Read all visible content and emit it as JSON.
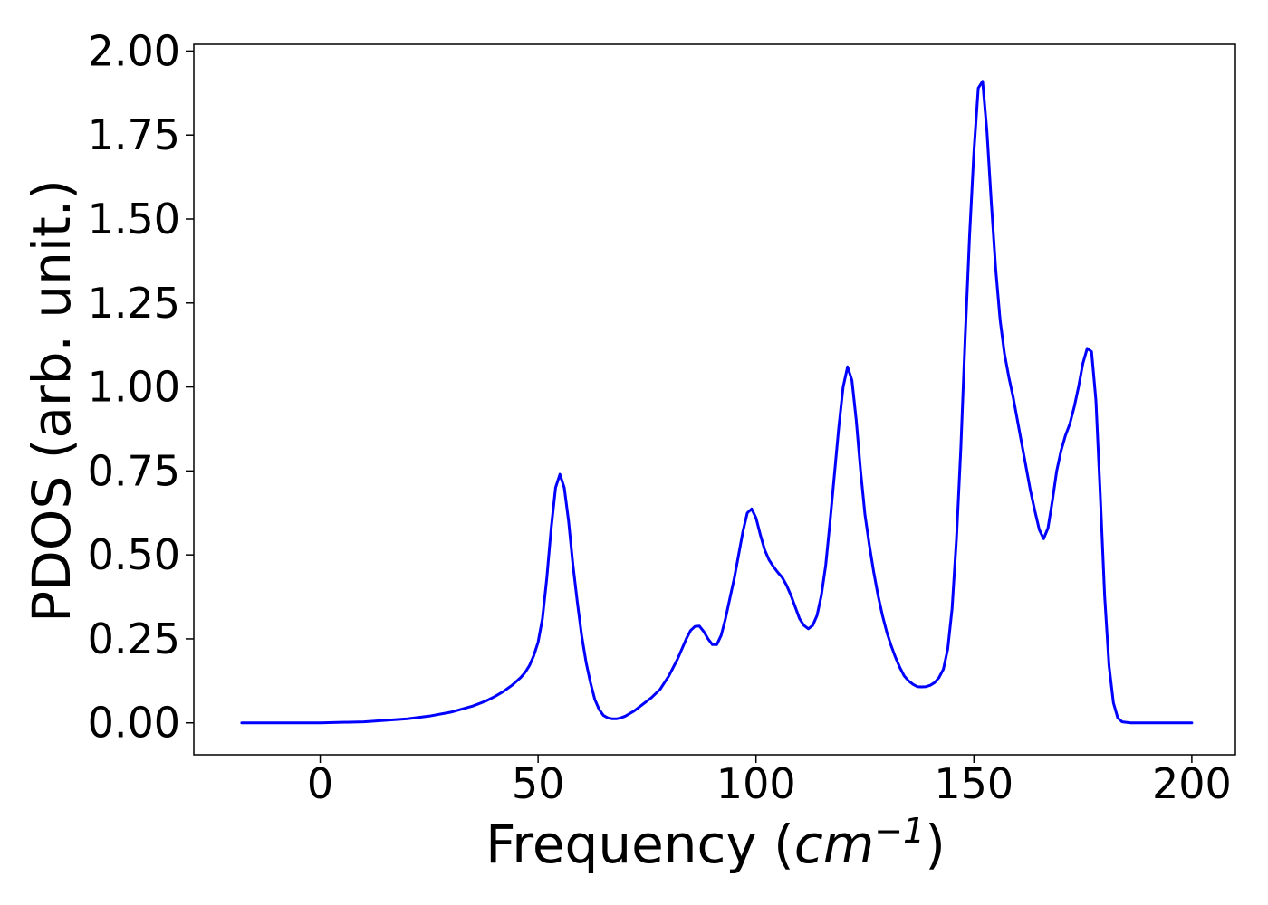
{
  "chart_data": {
    "type": "line",
    "title": "",
    "xlabel": {
      "prefix": "Frequency (",
      "unit_main": "cm",
      "unit_exponent": "−1",
      "suffix": ")"
    },
    "ylabel": "PDOS (arb. unit.)",
    "xlim": [
      -29,
      210
    ],
    "ylim": [
      -0.095,
      2.02
    ],
    "x_ticks": [
      0,
      50,
      100,
      150,
      200
    ],
    "x_tick_labels": [
      "0",
      "50",
      "100",
      "150",
      "200"
    ],
    "y_ticks": [
      0.0,
      0.25,
      0.5,
      0.75,
      1.0,
      1.25,
      1.5,
      1.75,
      2.0
    ],
    "y_tick_labels": [
      "0.00",
      "0.25",
      "0.50",
      "0.75",
      "1.00",
      "1.25",
      "1.50",
      "1.75",
      "2.00"
    ],
    "grid": false,
    "legend": "none",
    "series": [
      {
        "color": "#0000ff",
        "points": [
          [
            -18,
            0.0
          ],
          [
            0,
            0.0
          ],
          [
            10,
            0.003
          ],
          [
            20,
            0.012
          ],
          [
            25,
            0.02
          ],
          [
            30,
            0.032
          ],
          [
            35,
            0.05
          ],
          [
            38,
            0.065
          ],
          [
            40,
            0.078
          ],
          [
            42,
            0.093
          ],
          [
            44,
            0.112
          ],
          [
            46,
            0.135
          ],
          [
            47,
            0.15
          ],
          [
            48,
            0.17
          ],
          [
            49,
            0.2
          ],
          [
            50,
            0.24
          ],
          [
            51,
            0.31
          ],
          [
            52,
            0.43
          ],
          [
            53,
            0.58
          ],
          [
            54,
            0.7
          ],
          [
            55,
            0.74
          ],
          [
            56,
            0.7
          ],
          [
            57,
            0.6
          ],
          [
            58,
            0.47
          ],
          [
            59,
            0.36
          ],
          [
            60,
            0.26
          ],
          [
            61,
            0.18
          ],
          [
            62,
            0.12
          ],
          [
            63,
            0.07
          ],
          [
            64,
            0.04
          ],
          [
            65,
            0.022
          ],
          [
            66,
            0.015
          ],
          [
            67,
            0.012
          ],
          [
            68,
            0.012
          ],
          [
            69,
            0.015
          ],
          [
            70,
            0.02
          ],
          [
            72,
            0.035
          ],
          [
            74,
            0.055
          ],
          [
            76,
            0.075
          ],
          [
            78,
            0.1
          ],
          [
            80,
            0.14
          ],
          [
            82,
            0.19
          ],
          [
            84,
            0.25
          ],
          [
            85,
            0.275
          ],
          [
            86,
            0.287
          ],
          [
            87,
            0.288
          ],
          [
            88,
            0.272
          ],
          [
            89,
            0.25
          ],
          [
            90,
            0.233
          ],
          [
            91,
            0.233
          ],
          [
            92,
            0.26
          ],
          [
            93,
            0.31
          ],
          [
            94,
            0.37
          ],
          [
            95,
            0.43
          ],
          [
            96,
            0.5
          ],
          [
            97,
            0.57
          ],
          [
            98,
            0.625
          ],
          [
            99,
            0.637
          ],
          [
            100,
            0.61
          ],
          [
            101,
            0.56
          ],
          [
            102,
            0.515
          ],
          [
            103,
            0.485
          ],
          [
            104,
            0.465
          ],
          [
            105,
            0.448
          ],
          [
            106,
            0.433
          ],
          [
            107,
            0.41
          ],
          [
            108,
            0.38
          ],
          [
            109,
            0.345
          ],
          [
            110,
            0.31
          ],
          [
            111,
            0.29
          ],
          [
            112,
            0.28
          ],
          [
            113,
            0.29
          ],
          [
            114,
            0.32
          ],
          [
            115,
            0.38
          ],
          [
            116,
            0.47
          ],
          [
            117,
            0.6
          ],
          [
            118,
            0.74
          ],
          [
            119,
            0.88
          ],
          [
            120,
            1.0
          ],
          [
            121,
            1.06
          ],
          [
            122,
            1.02
          ],
          [
            123,
            0.9
          ],
          [
            124,
            0.75
          ],
          [
            125,
            0.62
          ],
          [
            126,
            0.53
          ],
          [
            127,
            0.45
          ],
          [
            128,
            0.38
          ],
          [
            129,
            0.32
          ],
          [
            130,
            0.27
          ],
          [
            131,
            0.23
          ],
          [
            132,
            0.195
          ],
          [
            133,
            0.165
          ],
          [
            134,
            0.14
          ],
          [
            135,
            0.125
          ],
          [
            136,
            0.115
          ],
          [
            137,
            0.108
          ],
          [
            138,
            0.107
          ],
          [
            139,
            0.108
          ],
          [
            140,
            0.112
          ],
          [
            141,
            0.12
          ],
          [
            142,
            0.135
          ],
          [
            143,
            0.16
          ],
          [
            144,
            0.22
          ],
          [
            145,
            0.34
          ],
          [
            146,
            0.55
          ],
          [
            147,
            0.82
          ],
          [
            148,
            1.15
          ],
          [
            149,
            1.45
          ],
          [
            150,
            1.7
          ],
          [
            151,
            1.89
          ],
          [
            152,
            1.91
          ],
          [
            153,
            1.76
          ],
          [
            154,
            1.55
          ],
          [
            155,
            1.35
          ],
          [
            156,
            1.2
          ],
          [
            157,
            1.1
          ],
          [
            158,
            1.03
          ],
          [
            159,
            0.97
          ],
          [
            160,
            0.9
          ],
          [
            161,
            0.83
          ],
          [
            162,
            0.76
          ],
          [
            163,
            0.69
          ],
          [
            164,
            0.63
          ],
          [
            165,
            0.575
          ],
          [
            166,
            0.548
          ],
          [
            167,
            0.58
          ],
          [
            168,
            0.66
          ],
          [
            169,
            0.75
          ],
          [
            170,
            0.81
          ],
          [
            171,
            0.855
          ],
          [
            172,
            0.89
          ],
          [
            173,
            0.94
          ],
          [
            174,
            1.0
          ],
          [
            175,
            1.07
          ],
          [
            176,
            1.115
          ],
          [
            177,
            1.105
          ],
          [
            178,
            0.96
          ],
          [
            179,
            0.68
          ],
          [
            180,
            0.38
          ],
          [
            181,
            0.17
          ],
          [
            182,
            0.06
          ],
          [
            183,
            0.015
          ],
          [
            184,
            0.003
          ],
          [
            186,
            0.0
          ],
          [
            190,
            0.0
          ],
          [
            200,
            0.0
          ]
        ]
      }
    ]
  }
}
